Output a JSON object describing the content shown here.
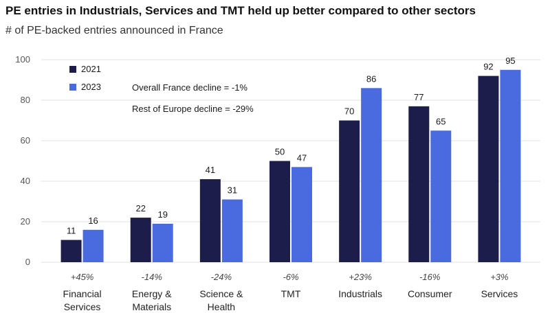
{
  "header": {
    "title": "PE entries in Industrials, Services and TMT held up better compared to other sectors",
    "subtitle": "# of PE-backed entries announced in France"
  },
  "annotations": [
    "Overall France decline = -1%",
    "Rest of Europe decline = -29%"
  ],
  "colors": {
    "series_2021": "#1c1d4a",
    "series_2023": "#4a6be0",
    "grid": "#e2e2e2"
  },
  "chart_data": {
    "type": "bar",
    "categories": [
      [
        "Financial",
        "Services"
      ],
      [
        "Energy &",
        "Materials"
      ],
      [
        "Science &",
        "Health"
      ],
      [
        "TMT"
      ],
      [
        "Industrials"
      ],
      [
        "Consumer"
      ],
      [
        "Services"
      ]
    ],
    "changes": [
      "+45%",
      "-14%",
      "-24%",
      "-6%",
      "+23%",
      "-16%",
      "+3%"
    ],
    "series": [
      {
        "name": "2021",
        "values": [
          11,
          22,
          41,
          50,
          70,
          77,
          92
        ]
      },
      {
        "name": "2023",
        "values": [
          16,
          19,
          31,
          47,
          86,
          65,
          95
        ]
      }
    ],
    "ylim": [
      0,
      100
    ],
    "yticks": [
      0,
      20,
      40,
      60,
      80,
      100
    ],
    "grid": true,
    "legend": "top-left"
  }
}
